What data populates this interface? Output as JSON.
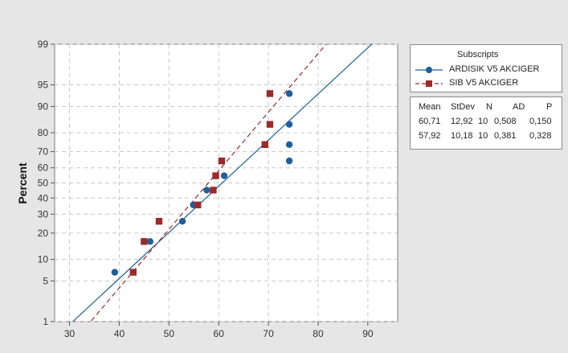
{
  "chart_data": {
    "type": "scatter",
    "title": "",
    "xlabel": "",
    "ylabel": "Percent",
    "xlim": [
      27,
      96
    ],
    "ylim": [
      1,
      99
    ],
    "y_scale": "normal-probability",
    "grid": true,
    "legend_placement": "right",
    "x_ticks": [
      30,
      40,
      50,
      60,
      70,
      80,
      90
    ],
    "y_ticks": [
      1,
      5,
      10,
      20,
      30,
      40,
      50,
      60,
      70,
      80,
      90,
      95,
      99
    ],
    "legend": {
      "title": "Subscripts"
    },
    "series": [
      {
        "name": "ARDISIK V5 AKCIGER",
        "color": "#1f5f9a",
        "marker": "circle",
        "line_style": "solid",
        "fit_line": {
          "mean": 60.71,
          "stdev": 12.92
        },
        "points": [
          {
            "x": 39.1,
            "y": 6.7
          },
          {
            "x": 46.2,
            "y": 16.3
          },
          {
            "x": 52.7,
            "y": 26
          },
          {
            "x": 54.9,
            "y": 35.6
          },
          {
            "x": 57.6,
            "y": 45.2
          },
          {
            "x": 61.1,
            "y": 54.8
          },
          {
            "x": 74.2,
            "y": 64.4
          },
          {
            "x": 74.2,
            "y": 74
          },
          {
            "x": 74.2,
            "y": 83.7
          },
          {
            "x": 74.2,
            "y": 93.3
          }
        ]
      },
      {
        "name": "SIB V5 AKCIGER",
        "color": "#9c2a2a",
        "marker": "square",
        "line_style": "dashed",
        "fit_line": {
          "mean": 57.92,
          "stdev": 10.18
        },
        "points": [
          {
            "x": 42.8,
            "y": 6.7
          },
          {
            "x": 45.0,
            "y": 16.3
          },
          {
            "x": 48.0,
            "y": 26
          },
          {
            "x": 55.8,
            "y": 35.6
          },
          {
            "x": 58.9,
            "y": 45.2
          },
          {
            "x": 59.4,
            "y": 54.8
          },
          {
            "x": 60.6,
            "y": 64.4
          },
          {
            "x": 69.3,
            "y": 74
          },
          {
            "x": 70.3,
            "y": 83.7
          },
          {
            "x": 70.3,
            "y": 93.3
          }
        ]
      }
    ],
    "stats_table": {
      "headers": [
        "Mean",
        "StDev",
        "N",
        "AD",
        "P"
      ],
      "rows": [
        [
          "60,71",
          "12,92",
          "10",
          "0,508",
          "0,150"
        ],
        [
          "57,92",
          "10,18",
          "10",
          "0,381",
          "0,328"
        ]
      ]
    }
  }
}
